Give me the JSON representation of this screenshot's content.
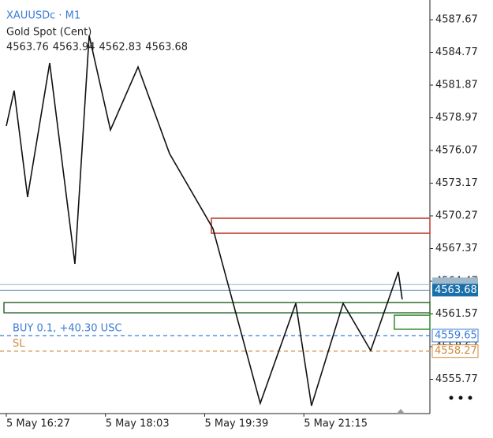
{
  "chart_data": {
    "type": "line",
    "title": "XAUUSDc · M1",
    "subtitle": "Gold Spot (Cent)",
    "ohlc": [
      4563.76,
      4563.94,
      4562.83,
      4563.68
    ],
    "x": [
      0,
      7.6,
      20.6,
      42,
      66.4,
      80.2,
      100.8,
      127.5,
      158,
      200,
      245.8,
      280.2,
      295.4,
      326,
      352.7,
      379.4,
      383.2
    ],
    "values": [
      4578.24,
      4581.38,
      4571.95,
      4583.83,
      4566.01,
      4586.27,
      4577.89,
      4583.48,
      4575.79,
      4569.15,
      4553.64,
      4562.51,
      4553.43,
      4562.51,
      4558.32,
      4565.31,
      4562.86
    ],
    "color": "#111111",
    "xlim": [
      -6.1,
      410
    ],
    "xticks": [
      {
        "value": 0,
        "label": "5 May 16:27"
      },
      {
        "value": 96,
        "label": "5 May 18:03"
      },
      {
        "value": 192,
        "label": "5 May 19:39"
      },
      {
        "value": 288,
        "label": "5 May 21:15"
      }
    ],
    "ylim": [
      4552.73,
      4589.42
    ],
    "yticks": [
      4587.67,
      4584.77,
      4581.87,
      4578.97,
      4576.07,
      4573.17,
      4570.27,
      4567.37,
      4564.47,
      4561.57,
      4558.67,
      4555.77
    ],
    "ask_line": {
      "value": 4564.17,
      "color": "#8fb3c9"
    },
    "bid_line": {
      "value": 4563.68,
      "color": "#4f86a8"
    },
    "orders": [
      {
        "text": "BUY 0.1,   +40.30 USC",
        "value": 4559.65,
        "color": "#3a7bd5"
      },
      {
        "text": "SL",
        "value": 4558.27,
        "color": "#d08a3c"
      }
    ],
    "zones": [
      {
        "from": 4570.06,
        "to": 4568.73,
        "x_from": 198.5,
        "color": "#c0392b"
      },
      {
        "from": 4562.58,
        "to": 4561.67,
        "x_from": -2.3,
        "color": "#2e6b2e"
      },
      {
        "from": 4561.46,
        "to": 4560.21,
        "x_from": 375.6,
        "color": "#2e8b2e"
      }
    ]
  }
}
